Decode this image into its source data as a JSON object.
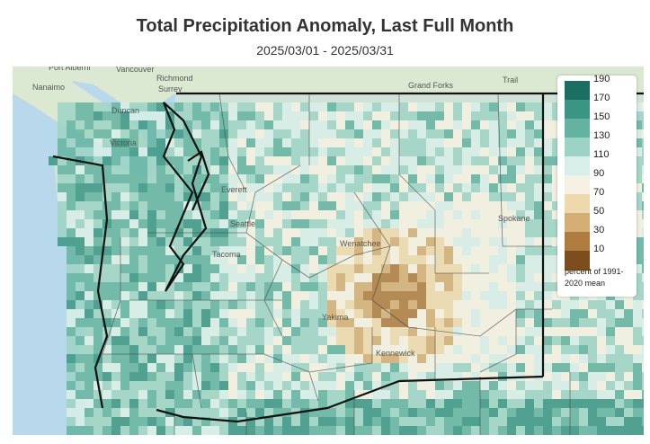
{
  "title": "Total Precipitation Anomaly, Last Full Month",
  "subtitle": "2025/03/01 - 2025/03/31",
  "legend": {
    "ticks": [
      "190",
      "170",
      "150",
      "130",
      "110",
      "90",
      "70",
      "50",
      "30",
      "10"
    ],
    "colors": [
      "#1b6e60",
      "#3a9582",
      "#63b3a0",
      "#9dd3c4",
      "#d8eee8",
      "#f6f1e2",
      "#eed9ad",
      "#d4ae72",
      "#b07b3e",
      "#7d4e1c"
    ],
    "note": "percent of 1991-2020 mean"
  },
  "map": {
    "water_color": "#b8d9ec",
    "land_color": "#cfe3d6",
    "places": [
      "Port Alberni",
      "Vancouver",
      "Richmond",
      "Nanaimo",
      "Surrey",
      "Duncan",
      "Victoria",
      "Grand Forks",
      "Trail",
      "Everett",
      "Seattle",
      "Tacoma",
      "Wenatchee",
      "Spokane",
      "Yakima",
      "Kennewick"
    ]
  }
}
